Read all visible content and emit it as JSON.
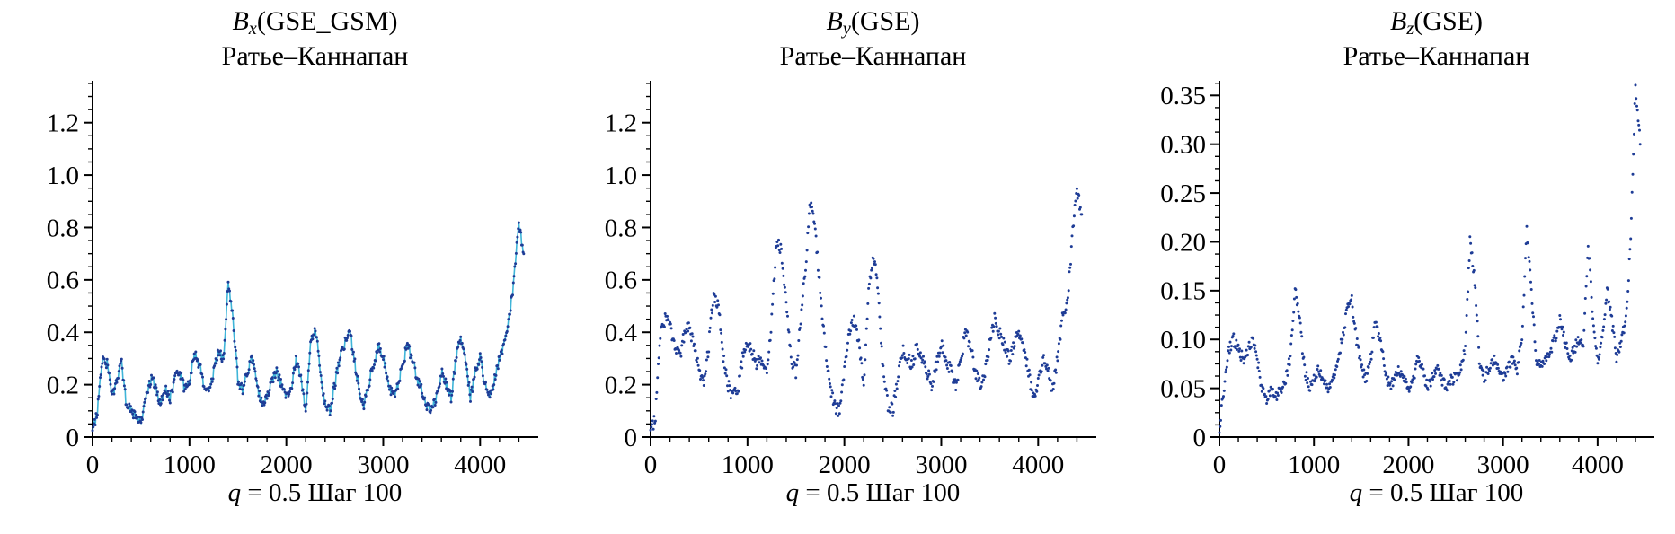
{
  "page": {
    "background": "#ffffff"
  },
  "colors": {
    "series": "#1e3c96",
    "series_alt": "#3fb5d8",
    "axis": "#000000",
    "text": "#000000"
  },
  "chart_data": [
    {
      "type": "scatter",
      "title_var": "B",
      "title_sub": "x",
      "title_rest": "(GSE_GSM)",
      "subtitle": "Ратье–Каннапан",
      "xlabel_var": "q",
      "xlabel_rest": " = 0.5 Шаг 100",
      "xlim": [
        0,
        4600
      ],
      "ylim": [
        0,
        1.36
      ],
      "xticks": {
        "values": [
          0,
          1000,
          2000,
          3000,
          4000
        ],
        "labels": [
          "0",
          "1000",
          "2000",
          "3000",
          "4000"
        ]
      },
      "yticks": {
        "values": [
          0,
          0.2,
          0.4,
          0.6,
          0.8,
          1.0,
          1.2
        ],
        "labels": [
          "0",
          "0.2",
          "0.4",
          "0.6",
          "0.8",
          "1.0",
          "1.2"
        ]
      },
      "xtick_minor_step": 200,
      "ytick_minor_step": 0.05,
      "margin_left": 92,
      "noise": 0.02,
      "underlay_color": "#3fb5d8",
      "x_step": 50,
      "y": [
        0.02,
        0.1,
        0.3,
        0.28,
        0.15,
        0.22,
        0.28,
        0.12,
        0.1,
        0.08,
        0.05,
        0.15,
        0.22,
        0.2,
        0.12,
        0.18,
        0.15,
        0.22,
        0.25,
        0.18,
        0.2,
        0.32,
        0.28,
        0.2,
        0.18,
        0.25,
        0.33,
        0.3,
        0.58,
        0.45,
        0.22,
        0.18,
        0.25,
        0.3,
        0.2,
        0.12,
        0.15,
        0.22,
        0.25,
        0.2,
        0.15,
        0.18,
        0.3,
        0.22,
        0.1,
        0.35,
        0.42,
        0.25,
        0.12,
        0.1,
        0.2,
        0.3,
        0.35,
        0.42,
        0.3,
        0.18,
        0.12,
        0.2,
        0.28,
        0.35,
        0.3,
        0.22,
        0.15,
        0.2,
        0.28,
        0.35,
        0.3,
        0.22,
        0.18,
        0.12,
        0.1,
        0.15,
        0.25,
        0.2,
        0.15,
        0.3,
        0.38,
        0.3,
        0.15,
        0.25,
        0.3,
        0.2,
        0.15,
        0.22,
        0.3,
        0.35,
        0.45,
        0.6,
        0.82,
        0.7
      ]
    },
    {
      "type": "scatter",
      "title_var": "B",
      "title_sub": "y",
      "title_rest": "(GSE)",
      "subtitle": "Ратье–Каннапан",
      "xlabel_var": "q",
      "xlabel_rest": " = 0.5 Шаг 100",
      "xlim": [
        0,
        4600
      ],
      "ylim": [
        0,
        1.36
      ],
      "xticks": {
        "values": [
          0,
          1000,
          2000,
          3000,
          4000
        ],
        "labels": [
          "0",
          "1000",
          "2000",
          "3000",
          "4000"
        ]
      },
      "yticks": {
        "values": [
          0,
          0.2,
          0.4,
          0.6,
          0.8,
          1.0,
          1.2
        ],
        "labels": [
          "0",
          "0.2",
          "0.4",
          "0.6",
          "0.8",
          "1.0",
          "1.2"
        ]
      },
      "xtick_minor_step": 200,
      "ytick_minor_step": 0.05,
      "margin_left": 92,
      "noise": 0.025,
      "x_step": 50,
      "y": [
        0.02,
        0.08,
        0.4,
        0.45,
        0.42,
        0.35,
        0.3,
        0.4,
        0.42,
        0.35,
        0.25,
        0.2,
        0.35,
        0.55,
        0.5,
        0.3,
        0.2,
        0.15,
        0.18,
        0.3,
        0.35,
        0.32,
        0.28,
        0.3,
        0.25,
        0.45,
        0.75,
        0.72,
        0.5,
        0.3,
        0.25,
        0.45,
        0.65,
        0.9,
        0.8,
        0.55,
        0.35,
        0.2,
        0.12,
        0.1,
        0.25,
        0.4,
        0.45,
        0.35,
        0.2,
        0.55,
        0.7,
        0.55,
        0.25,
        0.12,
        0.1,
        0.22,
        0.33,
        0.3,
        0.28,
        0.35,
        0.3,
        0.25,
        0.2,
        0.28,
        0.35,
        0.3,
        0.25,
        0.2,
        0.3,
        0.4,
        0.35,
        0.25,
        0.2,
        0.25,
        0.35,
        0.45,
        0.4,
        0.35,
        0.3,
        0.35,
        0.4,
        0.35,
        0.25,
        0.15,
        0.2,
        0.3,
        0.25,
        0.18,
        0.3,
        0.45,
        0.5,
        0.75,
        0.95,
        0.85
      ]
    },
    {
      "type": "scatter",
      "title_var": "B",
      "title_sub": "z",
      "title_rest": "(GSE)",
      "subtitle": "Ратье–Каннапан",
      "xlabel_var": "q",
      "xlabel_rest": " = 0.5 Шаг 100",
      "xlim": [
        0,
        4600
      ],
      "ylim": [
        0,
        0.365
      ],
      "xticks": {
        "values": [
          0,
          1000,
          2000,
          3000,
          4000
        ],
        "labels": [
          "0",
          "1000",
          "2000",
          "3000",
          "4000"
        ]
      },
      "yticks": {
        "values": [
          0,
          0.05,
          0.1,
          0.15,
          0.2,
          0.25,
          0.3,
          0.35
        ],
        "labels": [
          "0",
          "0.05",
          "0.10",
          "0.15",
          "0.20",
          "0.25",
          "0.30",
          "0.35"
        ]
      },
      "xtick_minor_step": 200,
      "ytick_minor_step": 0.0125,
      "margin_left": 104,
      "noise": 0.006,
      "x_step": 50,
      "y": [
        0.01,
        0.05,
        0.09,
        0.1,
        0.09,
        0.08,
        0.09,
        0.1,
        0.08,
        0.05,
        0.04,
        0.05,
        0.04,
        0.05,
        0.06,
        0.08,
        0.15,
        0.12,
        0.07,
        0.05,
        0.06,
        0.07,
        0.06,
        0.05,
        0.06,
        0.08,
        0.1,
        0.13,
        0.14,
        0.1,
        0.07,
        0.06,
        0.08,
        0.12,
        0.1,
        0.07,
        0.05,
        0.06,
        0.07,
        0.06,
        0.05,
        0.06,
        0.08,
        0.07,
        0.05,
        0.06,
        0.07,
        0.06,
        0.05,
        0.06,
        0.06,
        0.07,
        0.09,
        0.2,
        0.16,
        0.08,
        0.06,
        0.07,
        0.08,
        0.07,
        0.06,
        0.07,
        0.08,
        0.07,
        0.1,
        0.21,
        0.15,
        0.08,
        0.07,
        0.08,
        0.09,
        0.1,
        0.12,
        0.1,
        0.08,
        0.09,
        0.1,
        0.09,
        0.2,
        0.12,
        0.08,
        0.1,
        0.15,
        0.12,
        0.08,
        0.1,
        0.12,
        0.2,
        0.36,
        0.3
      ]
    }
  ]
}
